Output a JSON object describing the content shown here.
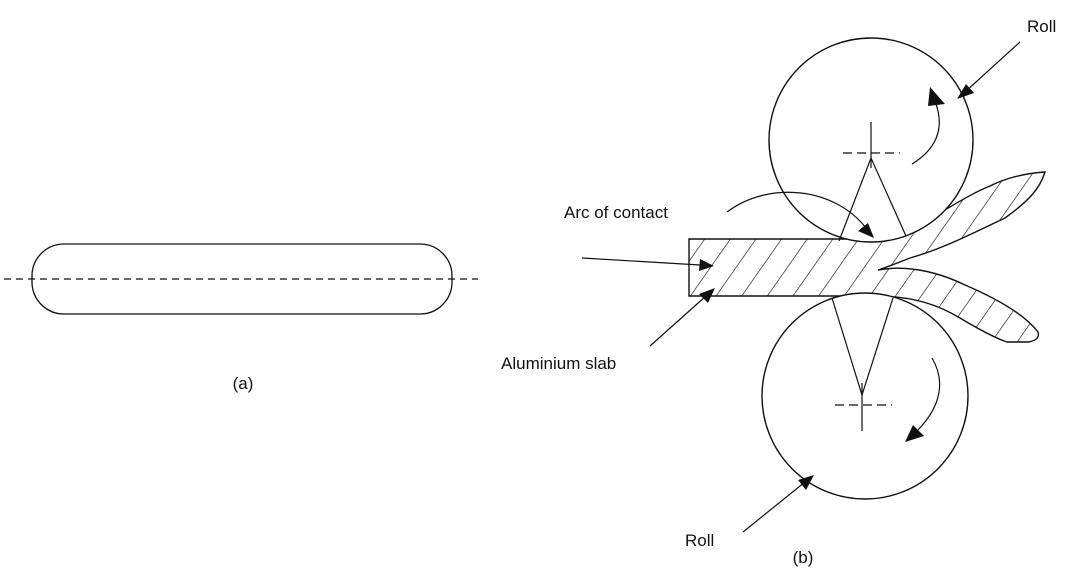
{
  "panel_a": {
    "caption": "(a)"
  },
  "panel_b": {
    "caption": "(b)",
    "labels": {
      "roll_top": "Roll",
      "roll_bottom": "Roll",
      "arc_of_contact": "Arc of contact",
      "slab": "Aluminium slab"
    }
  }
}
